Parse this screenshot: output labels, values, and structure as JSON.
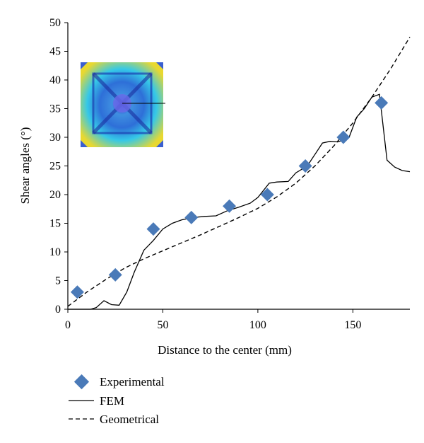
{
  "chart_data": {
    "type": "line",
    "title": "",
    "xlabel": "Distance to the center (mm)",
    "ylabel": "Shear angles (°)",
    "xlim": [
      0,
      180
    ],
    "ylim": [
      0,
      50
    ],
    "xticks": [
      0,
      50,
      100,
      150
    ],
    "yticks": [
      0,
      5,
      10,
      15,
      20,
      25,
      30,
      35,
      40,
      45,
      50
    ],
    "grid": false,
    "legend_position": "bottom-left",
    "inset": "shear angle contour map of deformed square blank",
    "series": [
      {
        "name": "Experimental",
        "style": "diamond-marker",
        "color": "#4a7ab8",
        "x": [
          5,
          25,
          45,
          65,
          85,
          105,
          125,
          145,
          165
        ],
        "y": [
          3,
          6,
          14,
          16,
          18,
          20,
          25,
          30,
          36
        ]
      },
      {
        "name": "FEM",
        "style": "solid-line",
        "color": "#000000",
        "x": [
          0,
          8,
          12,
          15,
          19,
          23,
          27,
          31,
          35,
          40,
          45,
          50,
          55,
          60,
          66,
          72,
          78,
          84,
          90,
          96,
          100,
          106,
          110,
          116,
          120,
          126,
          130,
          134,
          138,
          142,
          146,
          148,
          152,
          156,
          160,
          164,
          168,
          172,
          176,
          180
        ],
        "y": [
          0,
          0,
          0,
          0.3,
          1.5,
          0.8,
          0.7,
          3,
          6.5,
          10.3,
          12,
          14,
          15,
          15.6,
          16,
          16.2,
          16.3,
          17.2,
          17.8,
          18.5,
          19.5,
          22,
          22.2,
          22.3,
          23.8,
          25,
          27,
          29,
          29.3,
          29.2,
          29.6,
          30,
          33.5,
          35,
          37,
          37.5,
          26,
          24.8,
          24.2,
          24
        ]
      },
      {
        "name": "Geometrical",
        "style": "dashed-line",
        "color": "#000000",
        "x": [
          0,
          10,
          20,
          30,
          40,
          50,
          60,
          70,
          80,
          90,
          100,
          110,
          120,
          130,
          140,
          150,
          160,
          170,
          180
        ],
        "y": [
          0.5,
          3,
          5.2,
          7.2,
          8.8,
          10.2,
          11.6,
          13,
          14.5,
          16,
          17.6,
          19.6,
          22,
          25,
          28.5,
          32.5,
          37,
          42,
          47.5
        ]
      }
    ]
  }
}
